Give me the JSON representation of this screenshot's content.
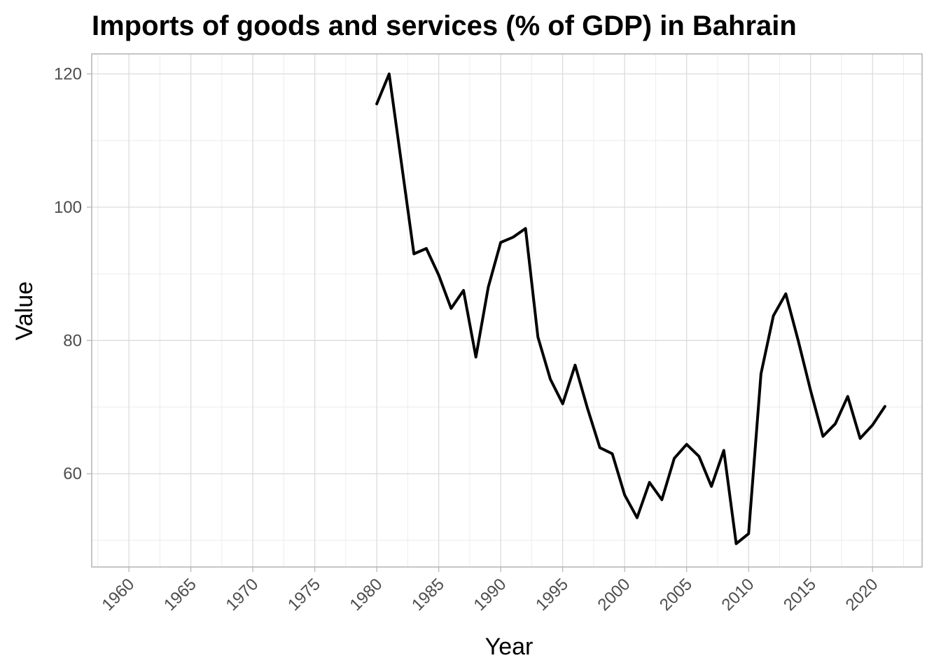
{
  "chart_data": {
    "type": "line",
    "title": "Imports of goods and services (% of GDP) in Bahrain",
    "xlabel": "Year",
    "ylabel": "Value",
    "xlim": [
      1957,
      2024
    ],
    "ylim": [
      46,
      123
    ],
    "x_ticks": [
      1960,
      1965,
      1970,
      1975,
      1980,
      1985,
      1990,
      1995,
      2000,
      2005,
      2010,
      2015,
      2020
    ],
    "y_ticks": [
      60,
      80,
      100,
      120
    ],
    "grid": true,
    "legend": "none",
    "line_color": "#000000",
    "series": [
      {
        "x": [
          1980,
          1981,
          1982,
          1983,
          1984,
          1985,
          1986,
          1987,
          1988,
          1989,
          1990,
          1991,
          1992,
          1993,
          1994,
          1995,
          1996,
          1997,
          1998,
          1999,
          2000,
          2001,
          2002,
          2003,
          2004,
          2005,
          2006,
          2007,
          2008,
          2009,
          2010,
          2011,
          2012,
          2013,
          2014,
          2015,
          2016,
          2017,
          2018,
          2019,
          2020,
          2021
        ],
        "values": [
          115.5,
          120.0,
          106.5,
          93.0,
          93.8,
          89.8,
          84.8,
          87.5,
          77.5,
          88.0,
          94.7,
          95.5,
          96.8,
          80.5,
          74.2,
          70.5,
          76.3,
          69.8,
          63.9,
          63.0,
          56.8,
          53.4,
          58.7,
          56.1,
          62.3,
          64.4,
          62.6,
          58.1,
          63.5,
          49.5,
          51.0,
          75.0,
          83.7,
          87.0,
          80.0,
          72.5,
          65.6,
          67.5,
          71.6,
          65.3,
          67.3,
          70.1
        ]
      }
    ]
  }
}
